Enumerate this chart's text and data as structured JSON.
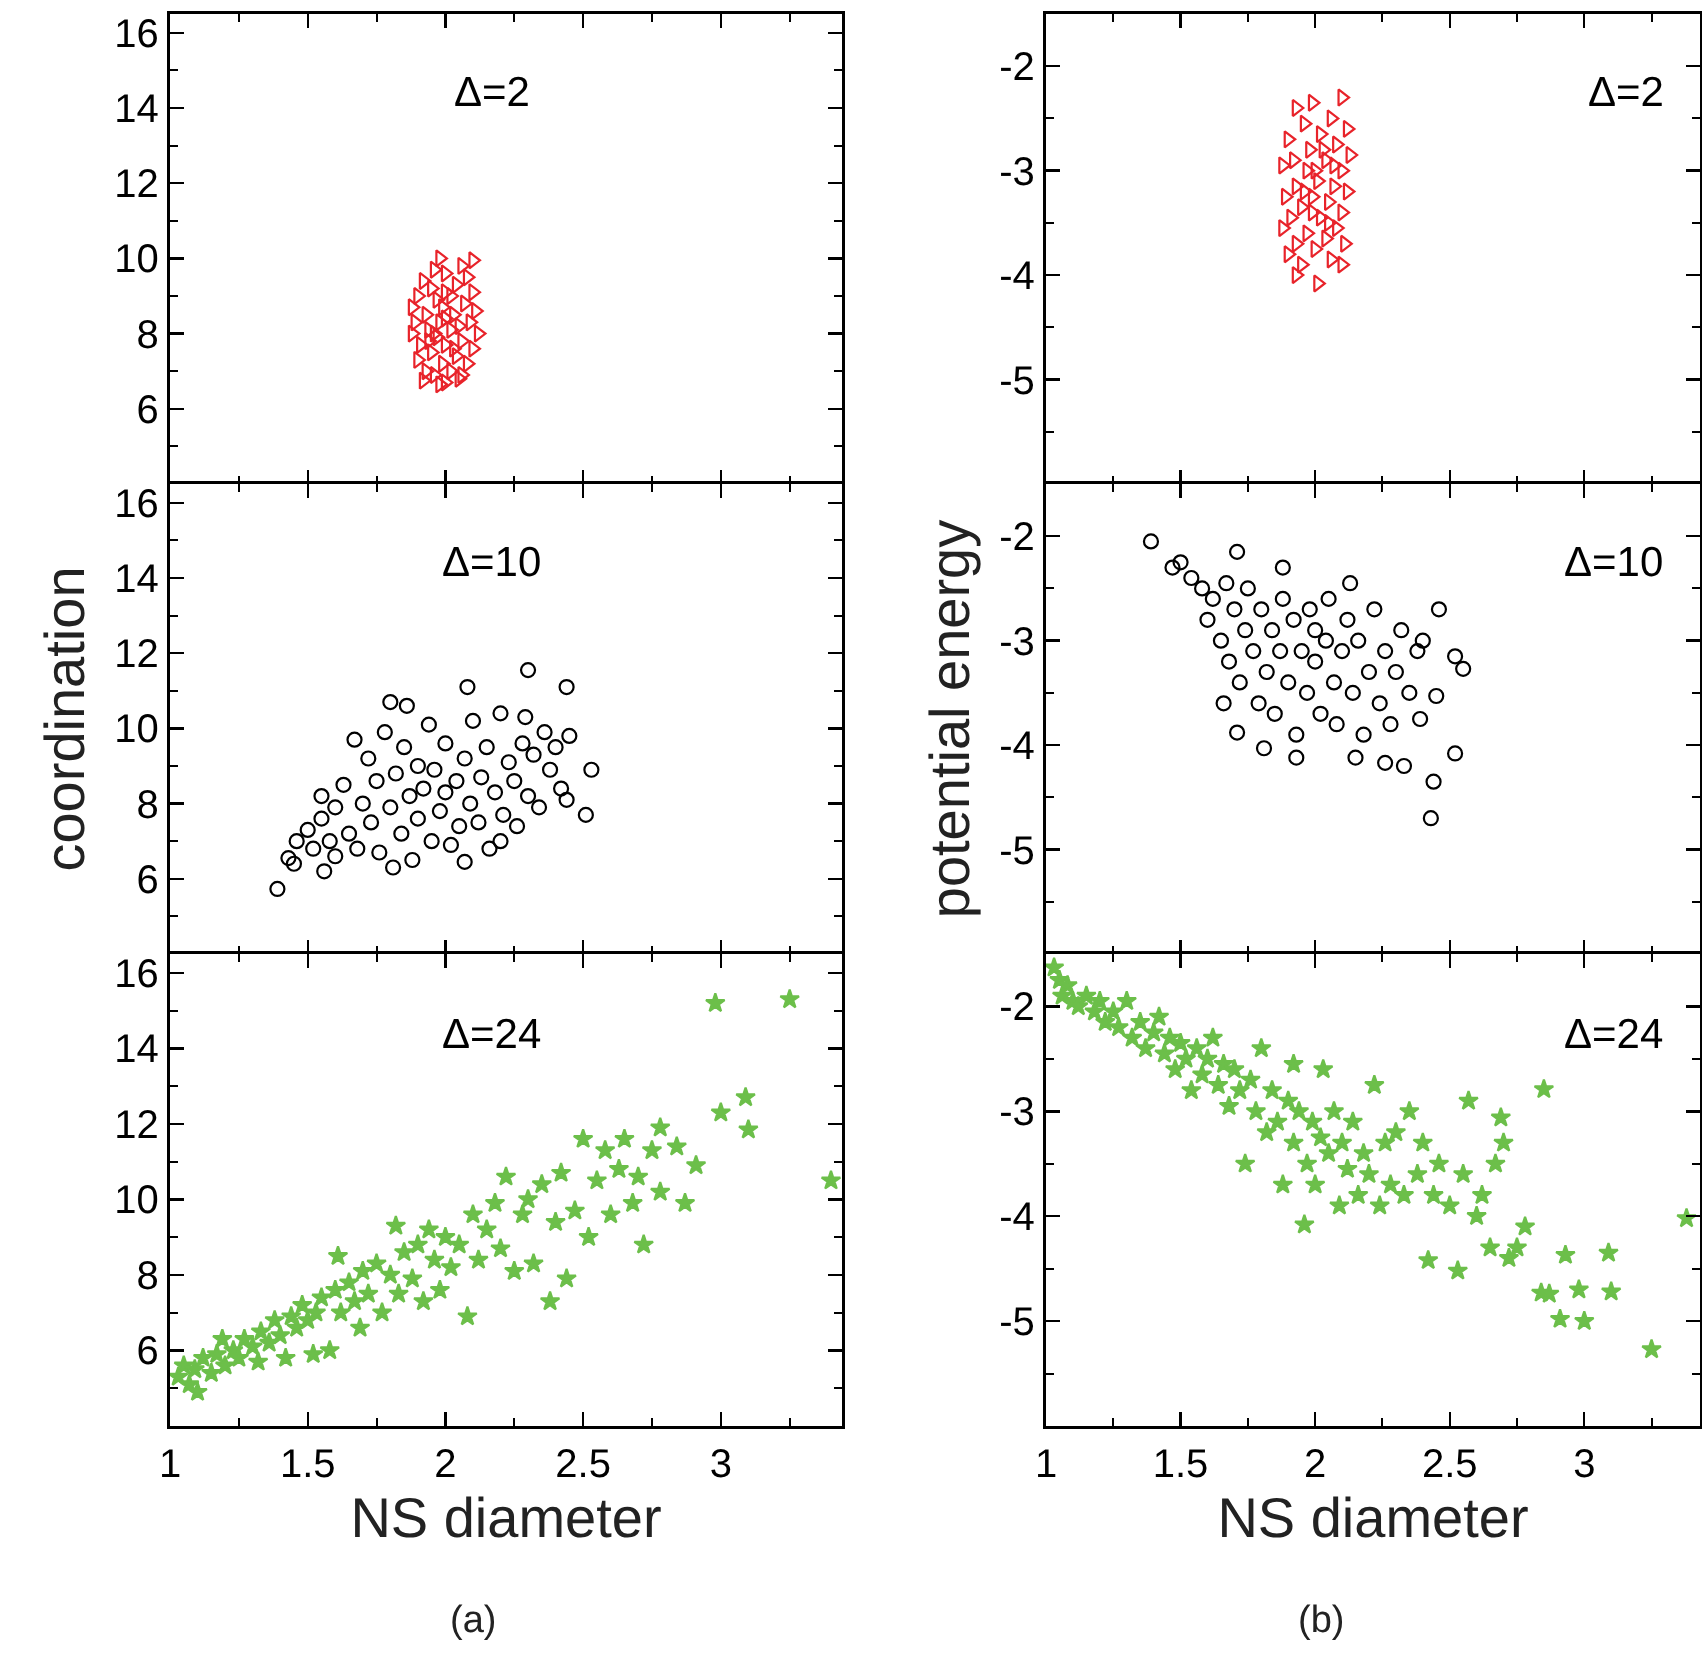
{
  "chart_data": [
    {
      "type": "scatter",
      "annotations": [
        "Δ=2"
      ],
      "xlim": [
        1,
        3.44
      ],
      "xticks": [
        1,
        {
          "value": 1.25,
          "label": null
        },
        1.5,
        {
          "value": 1.75,
          "label": null
        },
        2,
        {
          "value": 2.25,
          "label": null
        },
        2.5,
        {
          "value": 2.75,
          "label": null
        },
        3,
        {
          "value": 3.25,
          "label": null
        }
      ],
      "ylim": [
        4,
        16.5
      ],
      "yticks": [
        {
          "value": 5,
          "label": null
        },
        6,
        {
          "value": 7,
          "label": null
        },
        8,
        {
          "value": 9,
          "label": null
        },
        10,
        {
          "value": 11,
          "label": null
        },
        12,
        {
          "value": 13,
          "label": null
        },
        14,
        {
          "value": 15,
          "label": null
        },
        16
      ],
      "tick_labels": "y",
      "marker": "triangle",
      "series": [
        {
          "color": "#e8232a",
          "x": [
            1.98,
            2.1,
            2.06,
            1.96,
            2.0,
            2.08,
            1.92,
            2.04,
            1.95,
            2.1,
            1.9,
            2.02,
            1.97,
            2.07,
            1.88,
            1.99,
            2.11,
            1.93,
            2.03,
            1.89,
            1.98,
            2.09,
            1.94,
            2.02,
            2.12,
            1.88,
            1.97,
            2.06,
            1.91,
            2.0,
            2.1,
            1.95,
            2.04,
            1.9,
            1.99,
            2.08,
            1.93,
            2.02,
            1.96,
            2.06,
            1.92,
            2.0,
            1.98,
            2.05,
            2.0,
            1.96,
            2.05,
            2.0,
            1.94,
            2.03
          ],
          "values": [
            10.0,
            9.95,
            9.8,
            9.7,
            9.6,
            9.5,
            9.4,
            9.3,
            9.2,
            9.1,
            9.0,
            9.0,
            8.9,
            8.8,
            8.7,
            8.7,
            8.6,
            8.5,
            8.5,
            8.3,
            8.3,
            8.3,
            8.1,
            8.1,
            8.0,
            8.0,
            7.9,
            7.8,
            7.7,
            7.7,
            7.6,
            7.5,
            7.4,
            7.3,
            7.2,
            7.2,
            7.0,
            7.0,
            6.9,
            6.9,
            6.75,
            6.7,
            6.65,
            6.8,
            8.4,
            8.0,
            8.2,
            9.1,
            7.8,
            7.6
          ]
        }
      ]
    },
    {
      "type": "scatter",
      "annotations": [
        "Δ=2"
      ],
      "xlim": [
        1,
        3.43
      ],
      "xticks": [
        1,
        {
          "value": 1.25,
          "label": null
        },
        1.5,
        {
          "value": 1.75,
          "label": null
        },
        2,
        {
          "value": 2.25,
          "label": null
        },
        2.5,
        {
          "value": 2.75,
          "label": null
        },
        3,
        {
          "value": 3.25,
          "label": null
        }
      ],
      "ylim": [
        -6,
        -1.5
      ],
      "yticks": [
        -2,
        {
          "value": -2.5,
          "label": null
        },
        -3,
        {
          "value": -3.5,
          "label": null
        },
        -4,
        {
          "value": -4.5,
          "label": null
        },
        -5,
        {
          "value": -5.5,
          "label": null
        }
      ],
      "tick_labels": "y",
      "marker": "triangle",
      "series": [
        {
          "color": "#e8232a",
          "x": [
            1.99,
            2.1,
            1.93,
            2.06,
            2.12,
            1.96,
            2.02,
            1.9,
            2.08,
            1.98,
            2.13,
            1.92,
            2.04,
            1.88,
            2.1,
            1.97,
            2.01,
            1.93,
            2.07,
            2.12,
            1.89,
            1.99,
            2.05,
            1.95,
            2.1,
            1.91,
            2.02,
            2.08,
            1.88,
            1.97,
            2.04,
            1.93,
            2.11,
            2.0,
            1.9,
            2.06,
            1.95,
            2.1,
            1.93,
            2.01,
            2.0,
            1.96,
            2.03,
            2.05,
            1.99,
            2.07
          ],
          "values": [
            -2.35,
            -2.3,
            -2.4,
            -2.5,
            -2.6,
            -2.55,
            -2.65,
            -2.7,
            -2.75,
            -2.8,
            -2.85,
            -2.9,
            -2.9,
            -2.95,
            -3.0,
            -3.0,
            -3.1,
            -3.15,
            -3.15,
            -3.2,
            -3.25,
            -3.25,
            -3.3,
            -3.35,
            -3.4,
            -3.45,
            -3.45,
            -3.55,
            -3.55,
            -3.6,
            -3.65,
            -3.7,
            -3.7,
            -3.75,
            -3.8,
            -3.85,
            -3.9,
            -3.9,
            -4.0,
            -4.08,
            -3.0,
            -3.2,
            -2.8,
            -3.5,
            -3.4,
            -2.95
          ]
        }
      ]
    },
    {
      "type": "scatter",
      "annotations": [
        "Δ=10"
      ],
      "ylabel": "coordination",
      "xlim": [
        1,
        3.44
      ],
      "xticks": [
        1,
        {
          "value": 1.25,
          "label": null
        },
        1.5,
        {
          "value": 1.75,
          "label": null
        },
        2,
        {
          "value": 2.25,
          "label": null
        },
        2.5,
        {
          "value": 2.75,
          "label": null
        },
        3,
        {
          "value": 3.25,
          "label": null
        }
      ],
      "ylim": [
        4,
        16.5
      ],
      "yticks": [
        {
          "value": 5,
          "label": null
        },
        6,
        {
          "value": 7,
          "label": null
        },
        8,
        {
          "value": 9,
          "label": null
        },
        10,
        {
          "value": 11,
          "label": null
        },
        12,
        {
          "value": 13,
          "label": null
        },
        14,
        {
          "value": 15,
          "label": null
        },
        16
      ],
      "tick_labels": "y",
      "marker": "circle",
      "series": [
        {
          "color": "#000000",
          "x": [
            1.39,
            1.43,
            1.45,
            1.46,
            1.55,
            1.56,
            1.8,
            1.86,
            1.81,
            2.07,
            2.08,
            2.2,
            2.29,
            2.3,
            2.36,
            2.44,
            2.44,
            2.51,
            2.53,
            1.5,
            1.52,
            1.55,
            1.58,
            1.6,
            1.6,
            1.63,
            1.65,
            1.67,
            1.68,
            1.7,
            1.72,
            1.73,
            1.75,
            1.76,
            1.78,
            1.8,
            1.82,
            1.84,
            1.85,
            1.87,
            1.88,
            1.9,
            1.9,
            1.92,
            1.94,
            1.95,
            1.96,
            1.98,
            2.0,
            2.0,
            2.02,
            2.04,
            2.05,
            2.07,
            2.09,
            2.1,
            2.12,
            2.13,
            2.15,
            2.16,
            2.18,
            2.2,
            2.21,
            2.23,
            2.25,
            2.26,
            2.28,
            2.3,
            2.32,
            2.34,
            2.38,
            2.4,
            2.42,
            2.45
          ],
          "values": [
            5.73,
            6.55,
            6.4,
            7.0,
            8.2,
            6.2,
            10.7,
            10.6,
            6.3,
            6.45,
            11.1,
            7.0,
            10.3,
            11.55,
            9.9,
            11.1,
            8.1,
            7.7,
            8.9,
            7.3,
            6.8,
            7.6,
            7.0,
            7.9,
            6.6,
            8.5,
            7.2,
            9.7,
            6.8,
            8.0,
            9.2,
            7.5,
            8.6,
            6.7,
            9.9,
            7.9,
            8.8,
            7.2,
            9.5,
            8.2,
            6.5,
            9.0,
            7.6,
            8.4,
            10.1,
            7.0,
            8.9,
            7.8,
            8.3,
            9.6,
            6.9,
            8.6,
            7.4,
            9.2,
            8.0,
            10.2,
            7.5,
            8.7,
            9.5,
            6.8,
            8.3,
            10.4,
            7.7,
            9.1,
            8.6,
            7.4,
            9.6,
            8.2,
            9.3,
            7.9,
            8.9,
            9.5,
            8.4,
            9.8
          ]
        }
      ]
    },
    {
      "type": "scatter",
      "annotations": [
        "Δ=10"
      ],
      "ylabel": "potential energy",
      "xlim": [
        1,
        3.43
      ],
      "xticks": [
        1,
        {
          "value": 1.25,
          "label": null
        },
        1.5,
        {
          "value": 1.75,
          "label": null
        },
        2,
        {
          "value": 2.25,
          "label": null
        },
        2.5,
        {
          "value": 2.75,
          "label": null
        },
        3,
        {
          "value": 3.25,
          "label": null
        }
      ],
      "ylim": [
        -6,
        -1.5
      ],
      "yticks": [
        -2,
        {
          "value": -2.5,
          "label": null
        },
        -3,
        {
          "value": -3.5,
          "label": null
        },
        -4,
        {
          "value": -4.5,
          "label": null
        },
        -5,
        {
          "value": -5.5,
          "label": null
        }
      ],
      "tick_labels": "y",
      "marker": "circle",
      "series": [
        {
          "color": "#000000",
          "x": [
            1.39,
            1.47,
            1.5,
            1.54,
            1.71,
            1.88,
            2.13,
            2.46,
            2.52,
            2.55,
            2.45,
            2.43,
            2.44,
            2.52,
            2.33,
            2.26,
            2.15,
            1.93,
            1.81,
            1.71,
            1.66,
            2.39,
            1.58,
            1.6,
            1.62,
            1.65,
            1.67,
            1.68,
            1.7,
            1.72,
            1.74,
            1.75,
            1.77,
            1.79,
            1.8,
            1.82,
            1.84,
            1.85,
            1.87,
            1.88,
            1.9,
            1.92,
            1.93,
            1.95,
            1.97,
            1.98,
            2.0,
            2.0,
            2.02,
            2.04,
            2.05,
            2.07,
            2.08,
            2.1,
            2.12,
            2.14,
            2.16,
            2.18,
            2.2,
            2.22,
            2.24,
            2.26,
            2.28,
            2.3,
            2.32,
            2.35,
            2.38,
            2.4
          ],
          "values": [
            -2.05,
            -2.3,
            -2.25,
            -2.4,
            -2.15,
            -2.3,
            -2.45,
            -2.7,
            -3.15,
            -3.27,
            -3.53,
            -4.7,
            -4.35,
            -4.08,
            -4.2,
            -4.17,
            -4.12,
            -4.12,
            -4.03,
            -3.88,
            -3.6,
            -3.75,
            -2.5,
            -2.8,
            -2.6,
            -3.0,
            -2.45,
            -3.2,
            -2.7,
            -3.4,
            -2.9,
            -2.5,
            -3.1,
            -3.6,
            -2.7,
            -3.3,
            -2.9,
            -3.7,
            -3.1,
            -2.6,
            -3.4,
            -2.8,
            -3.9,
            -3.1,
            -3.5,
            -2.7,
            -3.2,
            -2.9,
            -3.7,
            -3.0,
            -2.6,
            -3.4,
            -3.8,
            -3.1,
            -2.8,
            -3.5,
            -3.0,
            -3.9,
            -3.3,
            -2.7,
            -3.6,
            -3.1,
            -3.8,
            -3.3,
            -2.9,
            -3.5,
            -3.1,
            -3.0
          ]
        }
      ]
    },
    {
      "type": "scatter",
      "annotations": [
        "Δ=24",
        "(a)"
      ],
      "xlabel": "NS diameter",
      "xlim": [
        1,
        3.44
      ],
      "xticks": [
        1,
        {
          "value": 1.25,
          "label": null
        },
        1.5,
        {
          "value": 1.75,
          "label": null
        },
        2,
        {
          "value": 2.25,
          "label": null
        },
        2.5,
        {
          "value": 2.75,
          "label": null
        },
        3,
        {
          "value": 3.25,
          "label": null
        }
      ],
      "ylim": [
        4,
        16.5
      ],
      "yticks": [
        {
          "value": 5,
          "label": null
        },
        6,
        {
          "value": 7,
          "label": null
        },
        8,
        {
          "value": 9,
          "label": null
        },
        10,
        {
          "value": 11,
          "label": null
        },
        12,
        {
          "value": 13,
          "label": null
        },
        14,
        {
          "value": 15,
          "label": null
        },
        16
      ],
      "marker": "star",
      "series": [
        {
          "color": "#6cbf4a",
          "x": [
            1.03,
            1.05,
            1.07,
            1.09,
            1.1,
            1.12,
            1.15,
            1.17,
            1.19,
            1.2,
            1.23,
            1.25,
            1.27,
            1.3,
            1.32,
            1.33,
            1.36,
            1.38,
            1.4,
            1.42,
            1.44,
            1.46,
            1.48,
            1.5,
            1.52,
            1.53,
            1.55,
            1.58,
            1.6,
            1.61,
            1.62,
            1.65,
            1.67,
            1.69,
            1.7,
            1.72,
            1.75,
            1.77,
            1.8,
            1.82,
            1.83,
            1.85,
            1.88,
            1.9,
            1.92,
            1.94,
            1.96,
            1.98,
            2.0,
            2.02,
            2.05,
            2.08,
            2.1,
            2.12,
            2.15,
            2.18,
            2.2,
            2.22,
            2.25,
            2.28,
            2.3,
            2.32,
            2.35,
            2.38,
            2.4,
            2.42,
            2.44,
            2.47,
            2.5,
            2.52,
            2.55,
            2.58,
            2.6,
            2.63,
            2.65,
            2.68,
            2.7,
            2.72,
            2.75,
            2.78,
            2.78,
            2.84,
            2.87,
            2.91,
            2.98,
            3.0,
            3.09,
            3.1,
            3.25,
            3.4
          ],
          "values": [
            5.3,
            5.6,
            5.1,
            5.5,
            4.9,
            5.8,
            5.4,
            5.9,
            6.3,
            5.6,
            6.0,
            5.8,
            6.3,
            6.1,
            5.7,
            6.5,
            6.2,
            6.8,
            6.4,
            5.8,
            6.9,
            6.6,
            7.2,
            6.8,
            5.9,
            7.0,
            7.4,
            6.0,
            7.6,
            8.5,
            7.0,
            7.8,
            7.3,
            6.6,
            8.1,
            7.5,
            8.3,
            7.0,
            8.0,
            9.3,
            7.5,
            8.6,
            7.9,
            8.8,
            7.3,
            9.2,
            8.4,
            7.6,
            9.0,
            8.2,
            8.8,
            6.9,
            9.6,
            8.4,
            9.2,
            9.9,
            8.7,
            10.6,
            8.1,
            9.6,
            10.0,
            8.3,
            10.4,
            7.3,
            9.4,
            10.7,
            7.9,
            9.7,
            11.6,
            9.0,
            10.5,
            11.3,
            9.6,
            10.8,
            11.6,
            9.9,
            10.6,
            8.8,
            11.3,
            11.9,
            10.2,
            11.4,
            9.9,
            10.9,
            15.2,
            12.3,
            12.7,
            11.85,
            15.3,
            10.5
          ]
        }
      ]
    },
    {
      "type": "scatter",
      "annotations": [
        "Δ=24",
        "(b)"
      ],
      "xlabel": "NS diameter",
      "xlim": [
        1,
        3.43
      ],
      "xticks": [
        1,
        {
          "value": 1.25,
          "label": null
        },
        1.5,
        {
          "value": 1.75,
          "label": null
        },
        2,
        {
          "value": 2.25,
          "label": null
        },
        2.5,
        {
          "value": 2.75,
          "label": null
        },
        3,
        {
          "value": 3.25,
          "label": null
        }
      ],
      "ylim": [
        -6,
        -1.5
      ],
      "yticks": [
        -2,
        {
          "value": -2.5,
          "label": null
        },
        -3,
        {
          "value": -3.5,
          "label": null
        },
        -4,
        {
          "value": -4.5,
          "label": null
        },
        -5,
        {
          "value": -5.5,
          "label": null
        }
      ],
      "marker": "star",
      "series": [
        {
          "color": "#6cbf4a",
          "x": [
            1.03,
            1.05,
            1.06,
            1.08,
            1.1,
            1.12,
            1.15,
            1.18,
            1.2,
            1.22,
            1.25,
            1.27,
            1.3,
            1.32,
            1.35,
            1.37,
            1.4,
            1.42,
            1.44,
            1.46,
            1.48,
            1.5,
            1.52,
            1.54,
            1.56,
            1.58,
            1.6,
            1.62,
            1.64,
            1.66,
            1.68,
            1.7,
            1.72,
            1.74,
            1.76,
            1.78,
            1.8,
            1.82,
            1.84,
            1.86,
            1.88,
            1.9,
            1.92,
            1.92,
            1.94,
            1.96,
            1.97,
            1.99,
            2.0,
            2.02,
            2.03,
            2.05,
            2.07,
            2.09,
            2.1,
            2.12,
            2.14,
            2.16,
            2.18,
            2.2,
            2.22,
            2.24,
            2.26,
            2.28,
            2.3,
            2.33,
            2.35,
            2.38,
            2.4,
            2.42,
            2.44,
            2.46,
            2.5,
            2.53,
            2.55,
            2.57,
            2.6,
            2.62,
            2.65,
            2.67,
            2.69,
            2.7,
            2.72,
            2.75,
            2.78,
            2.84,
            2.85,
            2.87,
            2.91,
            2.93,
            2.98,
            3.0,
            3.09,
            3.1,
            3.25,
            3.38
          ],
          "values": [
            -1.63,
            -1.75,
            -1.9,
            -1.8,
            -1.95,
            -2.0,
            -1.9,
            -2.05,
            -1.95,
            -2.15,
            -2.05,
            -2.2,
            -1.95,
            -2.3,
            -2.15,
            -2.4,
            -2.25,
            -2.1,
            -2.45,
            -2.3,
            -2.6,
            -2.35,
            -2.5,
            -2.8,
            -2.4,
            -2.65,
            -2.5,
            -2.3,
            -2.75,
            -2.55,
            -2.95,
            -2.6,
            -2.8,
            -3.5,
            -2.7,
            -3.0,
            -2.4,
            -3.2,
            -2.8,
            -3.1,
            -3.7,
            -2.9,
            -3.3,
            -2.55,
            -3.0,
            -4.08,
            -3.5,
            -3.1,
            -3.7,
            -3.25,
            -2.6,
            -3.4,
            -3.0,
            -3.9,
            -3.3,
            -3.55,
            -3.1,
            -3.8,
            -3.4,
            -3.6,
            -2.75,
            -3.9,
            -3.3,
            -3.7,
            -3.2,
            -3.8,
            -3.0,
            -3.6,
            -3.3,
            -4.42,
            -3.8,
            -3.5,
            -3.9,
            -4.52,
            -3.6,
            -2.9,
            -4.0,
            -3.8,
            -4.3,
            -3.5,
            -3.06,
            -3.3,
            -4.4,
            -4.3,
            -4.1,
            -4.73,
            -2.79,
            -4.74,
            -4.98,
            -4.37,
            -4.7,
            -5.0,
            -4.35,
            -4.72,
            -5.27,
            -4.02
          ]
        }
      ]
    }
  ]
}
